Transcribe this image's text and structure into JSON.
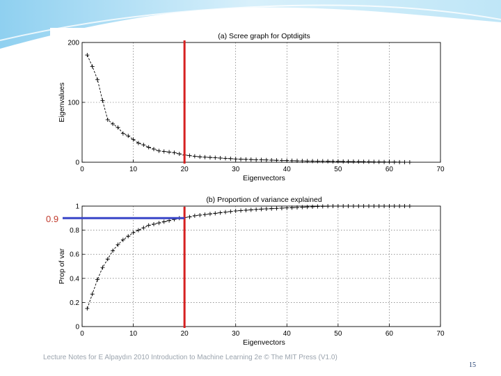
{
  "theme": {
    "bg_light": "#eaf6fd",
    "bg_accent": "#8fd0f0",
    "marker_color": "#d62020",
    "threshold_color": "#3845c8",
    "series_color": "#000000"
  },
  "annotations": {
    "threshold_label": "0.9",
    "threshold_value": 0.9,
    "selected_eigenvectors": 20
  },
  "footer": {
    "text": "Lecture Notes for E Alpaydın 2010 Introduction to Machine Learning 2e © The MIT Press (V1.0)",
    "page_number": "15"
  },
  "chart_data": [
    {
      "type": "line",
      "title": "(a) Scree graph for Optdigits",
      "xlabel": "Eigenvectors",
      "ylabel": "Eigenvalues",
      "xlim": [
        0,
        70
      ],
      "ylim": [
        0,
        200
      ],
      "xticks": [
        0,
        10,
        20,
        30,
        40,
        50,
        60,
        70
      ],
      "yticks": [
        0,
        100,
        200
      ],
      "grid": true,
      "x": [
        1,
        2,
        3,
        4,
        5,
        6,
        7,
        8,
        9,
        10,
        11,
        12,
        13,
        14,
        15,
        16,
        17,
        18,
        19,
        20,
        21,
        22,
        23,
        24,
        25,
        26,
        27,
        28,
        29,
        30,
        31,
        32,
        33,
        34,
        35,
        36,
        37,
        38,
        39,
        40,
        41,
        42,
        43,
        44,
        45,
        46,
        47,
        48,
        49,
        50,
        51,
        52,
        53,
        54,
        55,
        56,
        57,
        58,
        59,
        60,
        61,
        62,
        63,
        64
      ],
      "y": [
        179,
        160,
        138,
        103,
        71,
        64,
        58,
        48,
        44,
        38,
        32,
        29,
        25,
        22,
        19,
        18,
        17,
        16,
        14,
        12,
        11,
        10,
        9,
        8.5,
        8,
        7.5,
        7,
        6.5,
        6,
        5.5,
        5,
        4.8,
        4.5,
        4.2,
        4,
        3.8,
        3.5,
        3.2,
        3,
        2.8,
        2.6,
        2.4,
        2.2,
        2,
        1.9,
        1.8,
        1.7,
        1.6,
        1.5,
        1.4,
        1.3,
        1.2,
        1.1,
        1,
        0.9,
        0.8,
        0.7,
        0.6,
        0.5,
        0.4,
        0.3,
        0.2,
        0.1,
        0
      ]
    },
    {
      "type": "line",
      "title": "(b) Proportion of variance explained",
      "xlabel": "Eigenvectors",
      "ylabel": "Prop of var",
      "xlim": [
        0,
        70
      ],
      "ylim": [
        0,
        1
      ],
      "xticks": [
        0,
        10,
        20,
        30,
        40,
        50,
        60,
        70
      ],
      "yticks": [
        0,
        0.2,
        0.4,
        0.6,
        0.8,
        1
      ],
      "grid": true,
      "x": [
        1,
        2,
        3,
        4,
        5,
        6,
        7,
        8,
        9,
        10,
        11,
        12,
        13,
        14,
        15,
        16,
        17,
        18,
        19,
        20,
        21,
        22,
        23,
        24,
        25,
        26,
        27,
        28,
        29,
        30,
        31,
        32,
        33,
        34,
        35,
        36,
        37,
        38,
        39,
        40,
        41,
        42,
        43,
        44,
        45,
        46,
        47,
        48,
        49,
        50,
        51,
        52,
        53,
        54,
        55,
        56,
        57,
        58,
        59,
        60,
        61,
        62,
        63,
        64
      ],
      "y": [
        0.15,
        0.27,
        0.39,
        0.49,
        0.56,
        0.63,
        0.68,
        0.72,
        0.75,
        0.78,
        0.8,
        0.82,
        0.84,
        0.85,
        0.86,
        0.87,
        0.88,
        0.89,
        0.9,
        0.905,
        0.91,
        0.92,
        0.925,
        0.93,
        0.935,
        0.94,
        0.945,
        0.95,
        0.955,
        0.96,
        0.963,
        0.966,
        0.969,
        0.972,
        0.975,
        0.977,
        0.979,
        0.981,
        0.983,
        0.985,
        0.987,
        0.989,
        0.991,
        0.993,
        0.995,
        0.997,
        0.998,
        0.999,
        1,
        1,
        1,
        1,
        1,
        1,
        1,
        1,
        1,
        1,
        1,
        1,
        1,
        1,
        1,
        1
      ]
    }
  ]
}
